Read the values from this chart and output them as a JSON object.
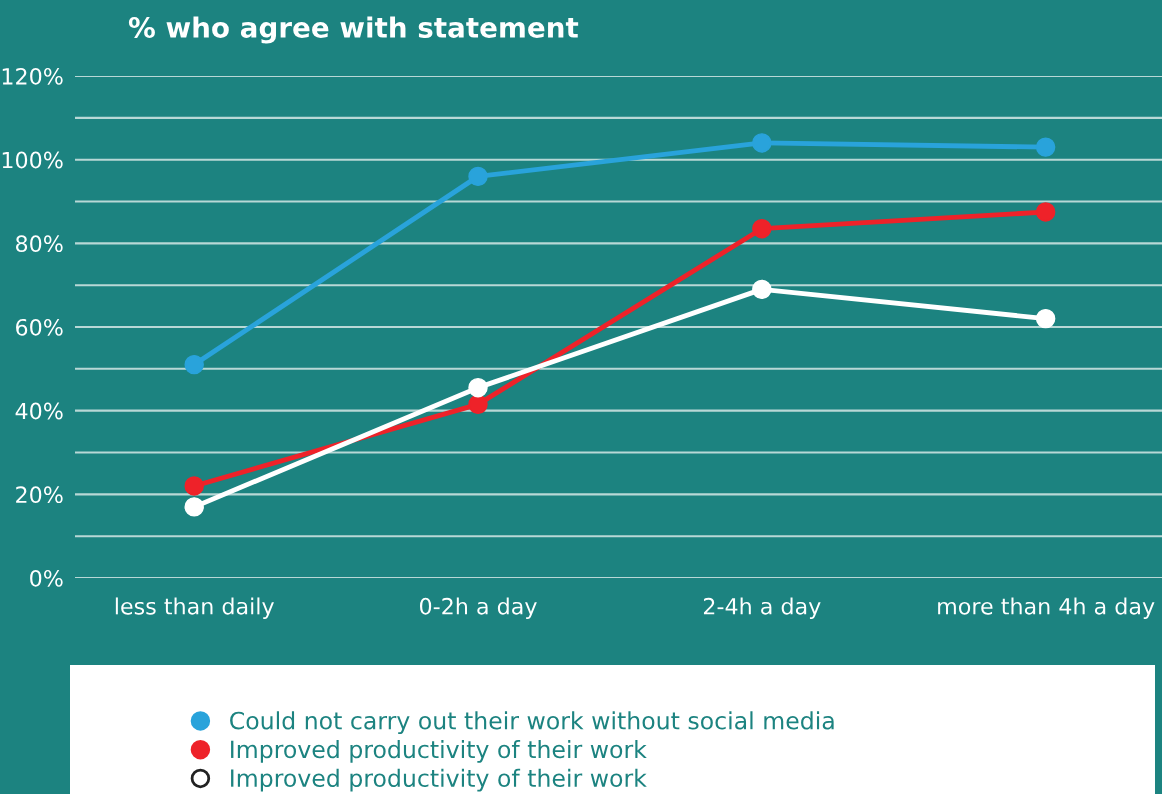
{
  "chart_data": {
    "type": "line",
    "title": "% who agree with statement",
    "categories": [
      "less than daily",
      "0-2h a day",
      "2-4h a day",
      "more than 4h a day"
    ],
    "series": [
      {
        "name": "Could not carry out their work without social media",
        "color": "#29a3db",
        "values": [
          51,
          96,
          104,
          103
        ]
      },
      {
        "name": "Improved productivity of their work",
        "color": "#ee2229",
        "values": [
          22,
          41.5,
          83.5,
          87.5
        ]
      },
      {
        "name": "Improved productivity of their work",
        "color": "#ffffff",
        "values": [
          17,
          45.5,
          69,
          62
        ]
      }
    ],
    "ylim": [
      0,
      120
    ],
    "yticks": [
      {
        "value": 0,
        "label": "0%"
      },
      {
        "value": 10,
        "label": null
      },
      {
        "value": 20,
        "label": "20%"
      },
      {
        "value": 30,
        "label": null
      },
      {
        "value": 40,
        "label": "40%"
      },
      {
        "value": 50,
        "label": null
      },
      {
        "value": 60,
        "label": "60%"
      },
      {
        "value": 70,
        "label": null
      },
      {
        "value": 80,
        "label": "80%"
      },
      {
        "value": 90,
        "label": null
      },
      {
        "value": 100,
        "label": "100%"
      },
      {
        "value": 110,
        "label": null
      },
      {
        "value": 120,
        "label": "120%"
      }
    ],
    "grid": "y",
    "legend": "bottom",
    "marker": "circle",
    "line_style": "solid"
  }
}
